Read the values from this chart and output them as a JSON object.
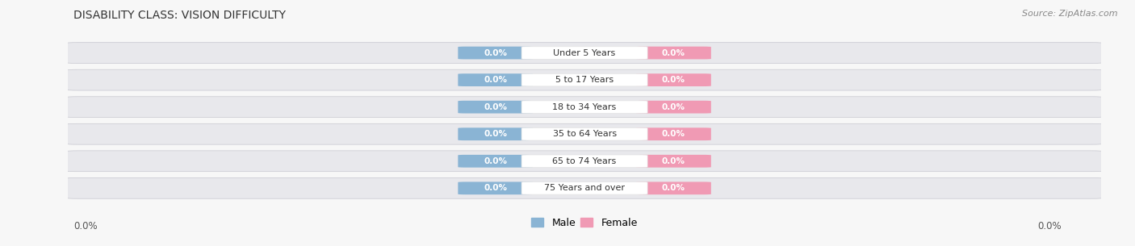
{
  "title": "DISABILITY CLASS: VISION DIFFICULTY",
  "source": "Source: ZipAtlas.com",
  "categories": [
    "Under 5 Years",
    "5 to 17 Years",
    "18 to 34 Years",
    "35 to 64 Years",
    "65 to 74 Years",
    "75 Years and over"
  ],
  "male_values": [
    0.0,
    0.0,
    0.0,
    0.0,
    0.0,
    0.0
  ],
  "female_values": [
    0.0,
    0.0,
    0.0,
    0.0,
    0.0,
    0.0
  ],
  "male_color": "#8ab4d4",
  "female_color": "#f09ab4",
  "row_fill": "#e8e8ec",
  "row_stroke": "#d0d0d8",
  "center_label_bg": "#ffffff",
  "value_text_color": "#ffffff",
  "center_text_color": "#333333",
  "title_fontsize": 10,
  "source_fontsize": 8,
  "axis_label_left": "0.0%",
  "axis_label_right": "0.0%",
  "bg_color": "#f7f7f7"
}
